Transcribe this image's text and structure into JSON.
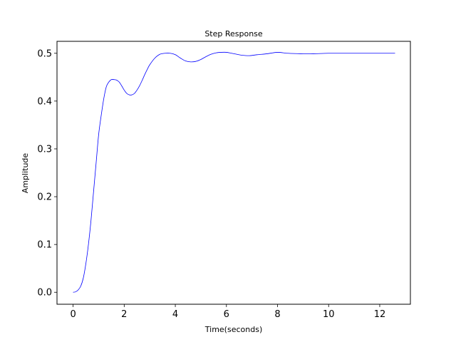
{
  "chart_data": {
    "type": "line",
    "title": "Step Response",
    "xlabel": "Time(seconds)",
    "ylabel": "Amplitude",
    "xlim": [
      -0.63,
      13.2
    ],
    "ylim": [
      -0.025,
      0.525
    ],
    "xticks": [
      0,
      2,
      4,
      6,
      8,
      10,
      12
    ],
    "xtick_labels": [
      "0",
      "2",
      "4",
      "6",
      "8",
      "10",
      "12"
    ],
    "yticks": [
      0.0,
      0.1,
      0.2,
      0.3,
      0.4,
      0.5
    ],
    "ytick_labels": [
      "0.0",
      "0.1",
      "0.2",
      "0.3",
      "0.4",
      "0.5"
    ],
    "grid": false,
    "line_color": "#0000ff",
    "series": [
      {
        "x": [
          0,
          0.1,
          0.2,
          0.3,
          0.4,
          0.5,
          0.6,
          0.7,
          0.8,
          0.9,
          1.0,
          1.1,
          1.2,
          1.3,
          1.4,
          1.5,
          1.6,
          1.7,
          1.8,
          1.9,
          2.0,
          2.1,
          2.2,
          2.3,
          2.4,
          2.5,
          2.6,
          2.7,
          2.8,
          2.9,
          3.0,
          3.2,
          3.4,
          3.6,
          3.8,
          4.0,
          4.2,
          4.4,
          4.6,
          4.8,
          5.0,
          5.2,
          5.4,
          5.6,
          5.8,
          6.0,
          6.2,
          6.4,
          6.6,
          6.9,
          7.2,
          7.6,
          8.0,
          8.4,
          8.9,
          9.4,
          10.0,
          10.6,
          11.2,
          11.8,
          12.6
        ],
        "y": [
          0.0,
          0.001,
          0.005,
          0.013,
          0.03,
          0.06,
          0.1,
          0.15,
          0.21,
          0.27,
          0.33,
          0.37,
          0.405,
          0.43,
          0.44,
          0.445,
          0.445,
          0.444,
          0.44,
          0.432,
          0.423,
          0.416,
          0.413,
          0.413,
          0.416,
          0.423,
          0.432,
          0.443,
          0.455,
          0.466,
          0.476,
          0.49,
          0.498,
          0.5,
          0.5,
          0.497,
          0.49,
          0.484,
          0.482,
          0.483,
          0.487,
          0.493,
          0.498,
          0.501,
          0.502,
          0.502,
          0.5,
          0.498,
          0.496,
          0.495,
          0.497,
          0.499,
          0.502,
          0.5,
          0.499,
          0.499,
          0.5,
          0.5,
          0.5,
          0.5,
          0.5
        ]
      }
    ]
  }
}
